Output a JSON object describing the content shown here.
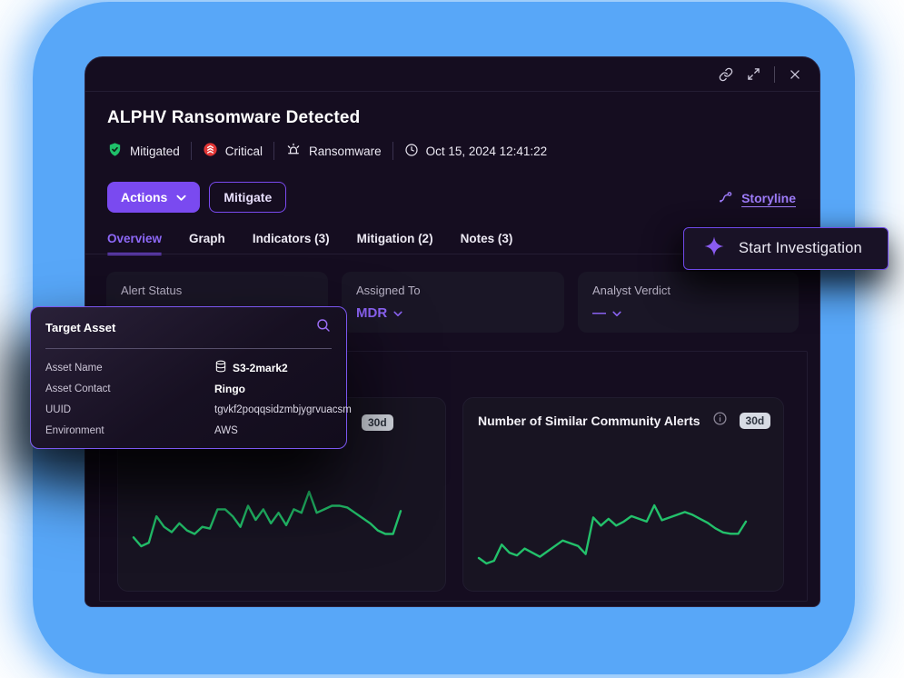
{
  "header": {
    "title": "ALPHV Ransomware Detected",
    "badges": [
      {
        "label": "Mitigated",
        "icon": "shield-check-icon",
        "color": "#1fc06a"
      },
      {
        "label": "Critical",
        "icon": "severity-critical-icon",
        "color": "#e23636"
      },
      {
        "label": "Ransomware",
        "icon": "siren-icon"
      }
    ],
    "timestamp": {
      "icon": "clock-icon",
      "label": "Oct 15, 2024 12:41:22"
    }
  },
  "window_controls": {
    "icons": [
      "link-icon",
      "expand-icon",
      "close-icon"
    ]
  },
  "toolbar": {
    "actions": {
      "label": "Actions",
      "icon": "chevron-down-icon"
    },
    "mitigate": {
      "label": "Mitigate"
    },
    "storyline": {
      "label": "Storyline",
      "icon": "storyline-icon"
    }
  },
  "investigate_button": {
    "label": "Start Investigation",
    "icon": "sparkle-icon"
  },
  "tabs": [
    {
      "label": "Overview",
      "active": true
    },
    {
      "label": "Graph",
      "active": false
    },
    {
      "label": "Indicators (3)",
      "active": false
    },
    {
      "label": "Mitigation (2)",
      "active": false
    },
    {
      "label": "Notes (3)",
      "active": false
    }
  ],
  "fields": [
    {
      "label": "Alert Status"
    },
    {
      "label": "Assigned To",
      "value": "MDR",
      "icon": "chevron-down-icon"
    },
    {
      "label": "Analyst Verdict",
      "value": "—",
      "icon": "chevron-down-icon"
    }
  ],
  "target_asset_card": {
    "title": "Target Asset",
    "search_icon": "search-icon",
    "rows": [
      {
        "label": "Asset Name",
        "value": "S3-2mark2",
        "icon": "database-icon",
        "bold": true
      },
      {
        "label": "Asset Contact",
        "value": "Ringo",
        "bold": true
      },
      {
        "label": "UUID",
        "value": "tgvkf2poqqsidzmbjygrvuacsm"
      },
      {
        "label": "Environment",
        "value": "AWS"
      }
    ]
  },
  "chart_data": [
    {
      "type": "line",
      "title": "",
      "period_badge": "30d",
      "color": "#23c16b",
      "axes_shown": false,
      "legend": false,
      "values_scale": "relative-0-100",
      "values": [
        30,
        25,
        27,
        42,
        36,
        33,
        38,
        34,
        32,
        36,
        35,
        46,
        46,
        42,
        36,
        48,
        40,
        46,
        38,
        44,
        37,
        46,
        44,
        56,
        44,
        46,
        48,
        48,
        47,
        44,
        41,
        38,
        34,
        32,
        32,
        45
      ]
    },
    {
      "type": "line",
      "title": "Number of Similar Community Alerts",
      "period_badge": "30d",
      "info_icon": true,
      "color": "#23c16b",
      "axes_shown": false,
      "legend": false,
      "values_scale": "relative-0-100",
      "values": [
        18,
        14,
        16,
        28,
        22,
        20,
        25,
        22,
        19,
        23,
        27,
        31,
        29,
        27,
        21,
        48,
        42,
        47,
        42,
        45,
        49,
        47,
        45,
        57,
        46,
        48,
        50,
        52,
        50,
        47,
        44,
        40,
        37,
        36,
        36,
        45
      ]
    }
  ],
  "colors": {
    "accent_purple": "#7a4af0",
    "link_purple": "#9d7bf8",
    "green_line": "#23c16b",
    "mitigated_green": "#1fc06a",
    "critical_red": "#e23636",
    "badge_bg": "#d7dbe4",
    "blue_background": "#58a7f8",
    "window_bg": "#150d20",
    "card_bg": "#1a1626"
  }
}
